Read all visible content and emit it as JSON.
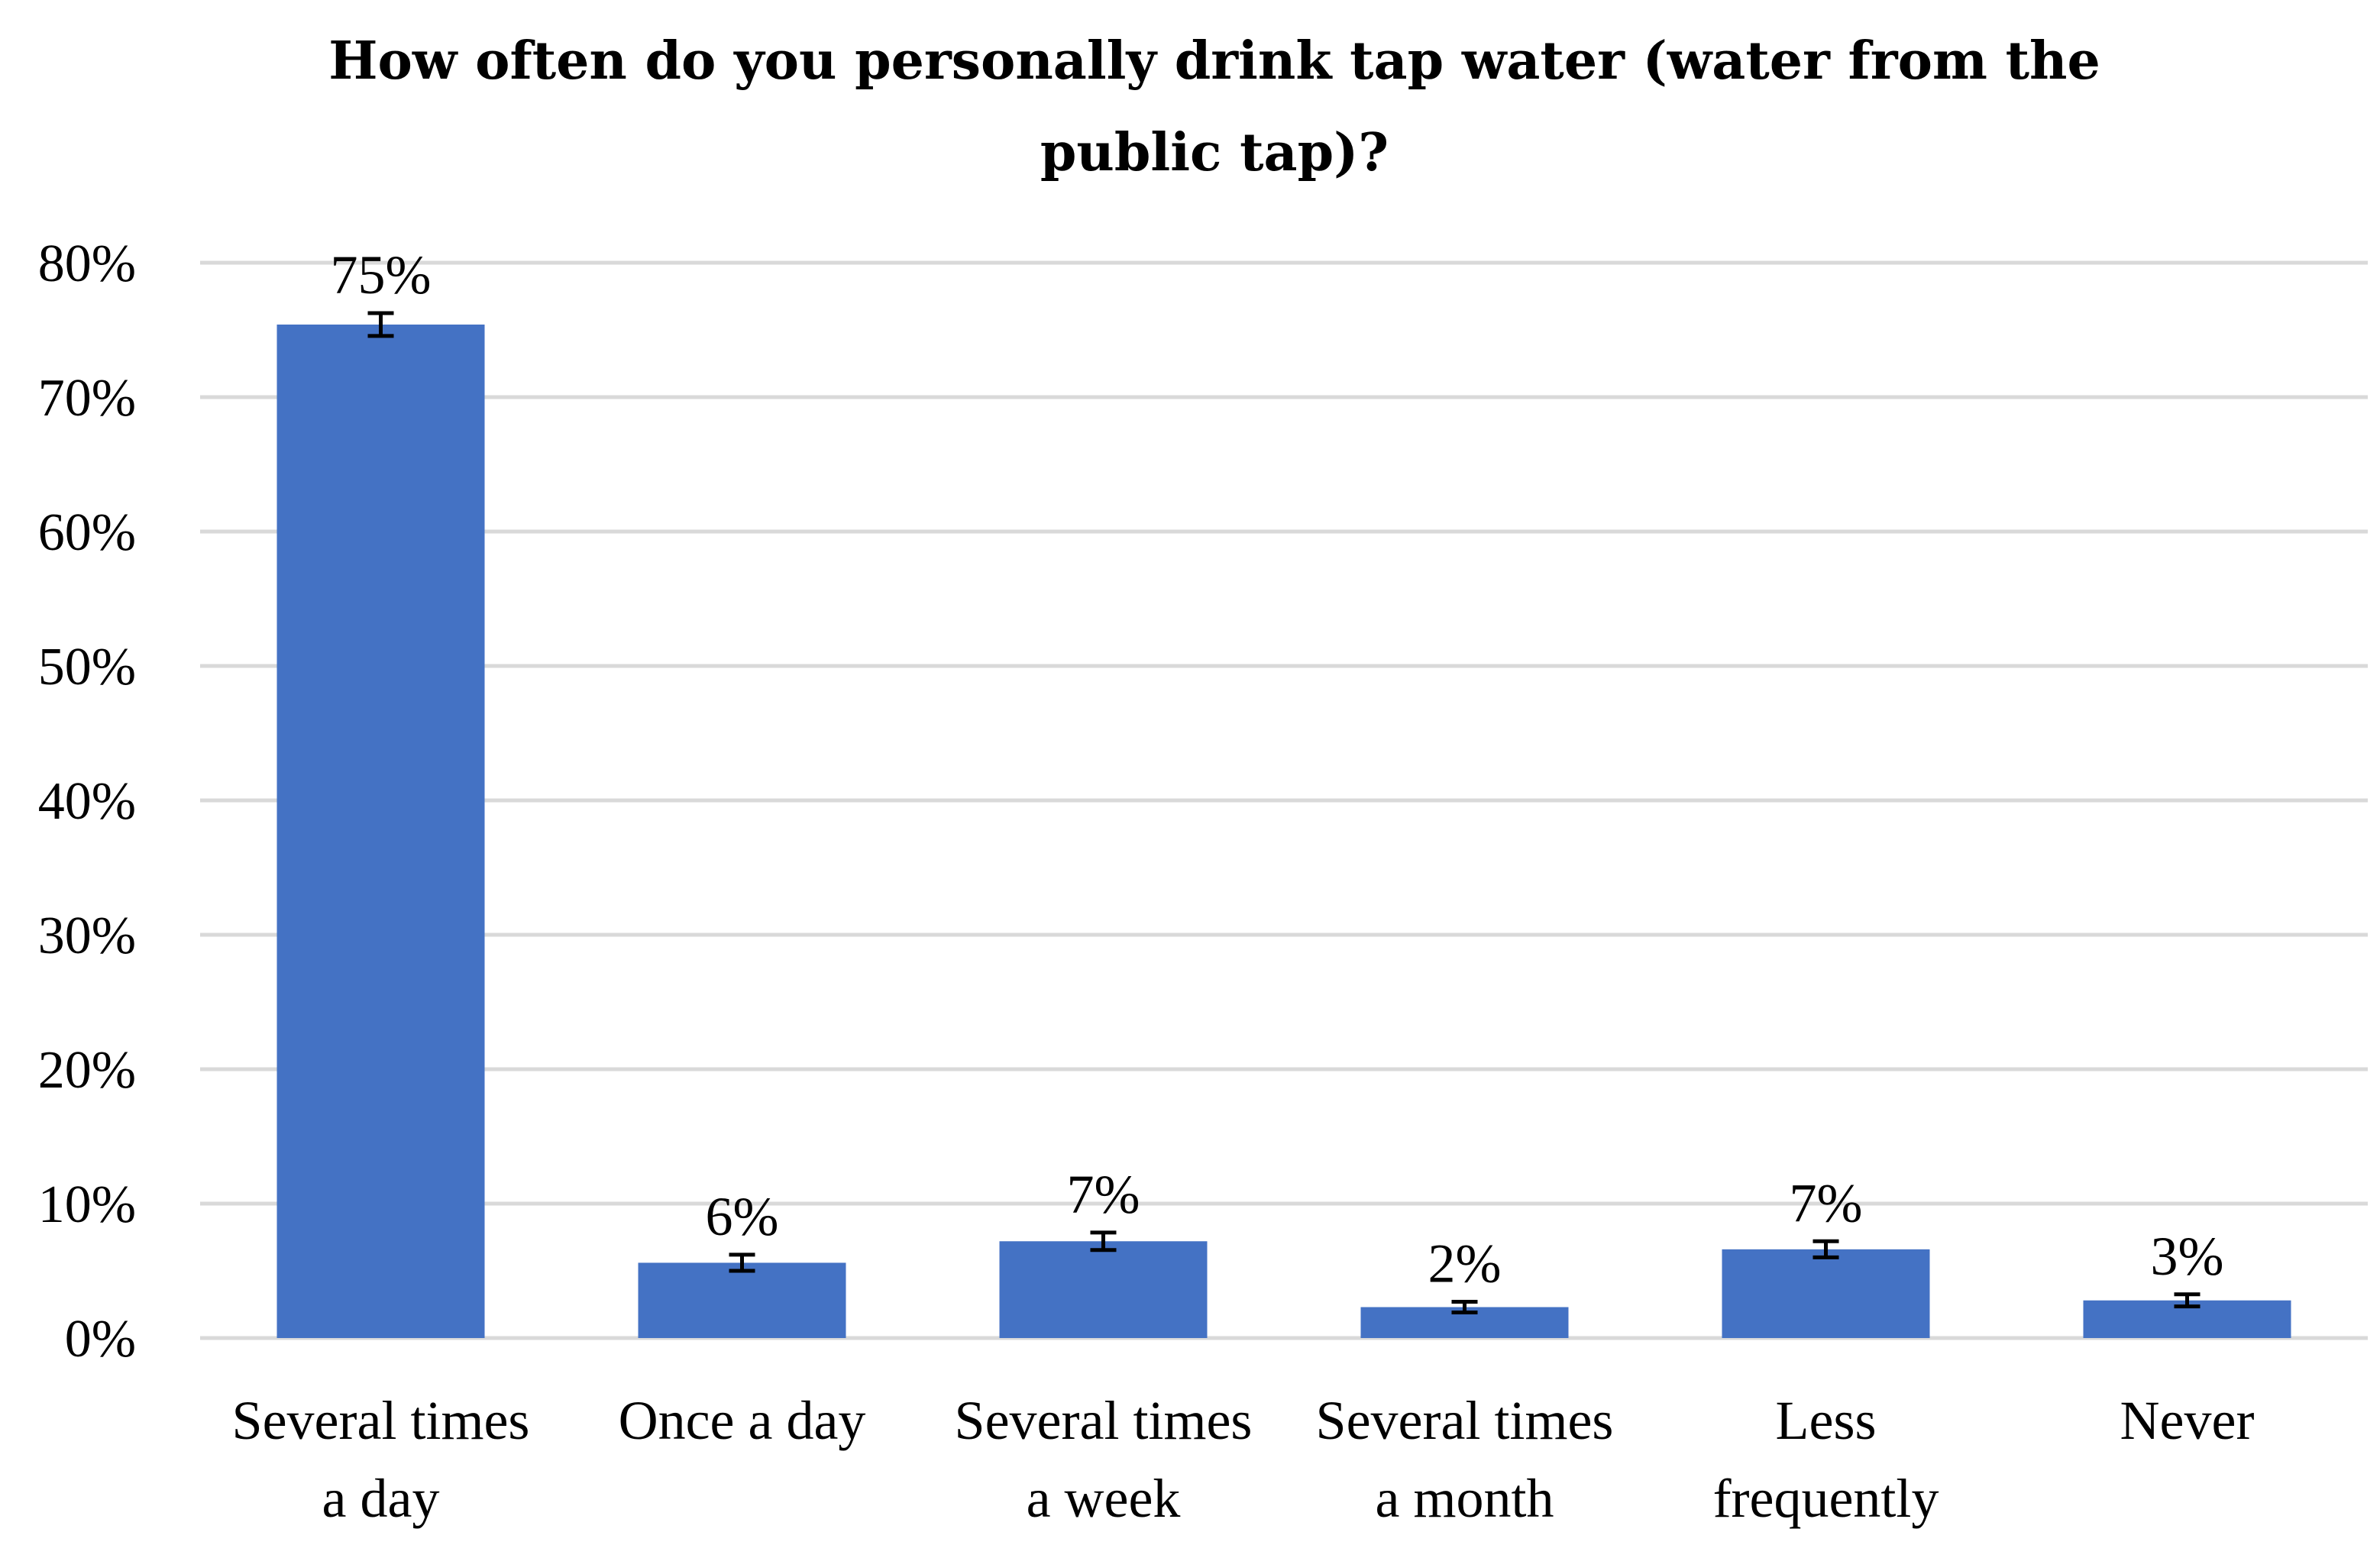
{
  "chart_data": {
    "type": "bar",
    "title_lines": [
      "How often do you personally drink tap water (water from the",
      "public tap)?"
    ],
    "categories": [
      [
        "Several times",
        "a day"
      ],
      [
        "Once a day"
      ],
      [
        "Several times",
        "a week"
      ],
      [
        "Several times",
        "a month"
      ],
      [
        "Less",
        "frequently"
      ],
      [
        "Never"
      ]
    ],
    "values": [
      75.4,
      5.6,
      7.2,
      2.3,
      6.6,
      2.8
    ],
    "error_bars": [
      0.85,
      0.6,
      0.65,
      0.4,
      0.6,
      0.45
    ],
    "data_labels": [
      "75%",
      "6%",
      "7%",
      "2%",
      "7%",
      "3%"
    ],
    "y_ticks": [
      0,
      10,
      20,
      30,
      40,
      50,
      60,
      70,
      80
    ],
    "y_tick_labels": [
      "0%",
      "10%",
      "20%",
      "30%",
      "40%",
      "50%",
      "60%",
      "70%",
      "80%"
    ],
    "ylim": [
      0,
      80
    ],
    "grid": true,
    "bar_color": "#4472c4",
    "xlabel": "",
    "ylabel": ""
  }
}
